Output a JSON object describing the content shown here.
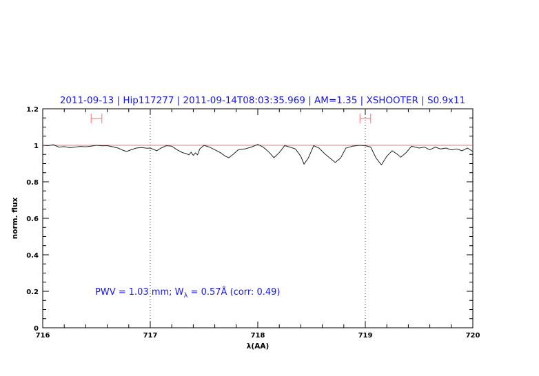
{
  "chart_data": {
    "type": "line",
    "title": "2011-09-13 | Hip117277 | 2011-09-14T08:03:35.969 | AM=1.35 | XSHOOTER | S0.9x11",
    "xlabel": "λ(AA)",
    "ylabel": "norm. flux",
    "xlim": [
      716,
      720
    ],
    "ylim": [
      0,
      1.2
    ],
    "xticks": [
      "716",
      "717",
      "718",
      "719",
      "720"
    ],
    "yticks": [
      "0",
      "0.2",
      "0.4",
      "0.6",
      "0.8",
      "1",
      "1.2"
    ],
    "grid": false,
    "reference_line": 1.0,
    "vertical_dotted_lines": [
      717,
      719
    ],
    "error_bars": [
      {
        "x": [
          716.45,
          716.55
        ],
        "y": 1.147
      },
      {
        "x": [
          718.95,
          719.05
        ],
        "y": 1.147
      }
    ],
    "annotation": {
      "prefix": "PWV  =  1.03  mm;  W",
      "sub": "λ",
      "suffix": "  =  0.57Å  (corr:  0.49)"
    },
    "series": [
      {
        "x": [
          716.0,
          716.05,
          716.1,
          716.15,
          716.2,
          716.25,
          716.3,
          716.35,
          716.4,
          716.45,
          716.5,
          716.55,
          716.6,
          716.65,
          716.7,
          716.75,
          716.78,
          716.82,
          716.87,
          716.92,
          716.97,
          717.0,
          717.06,
          717.1,
          717.15,
          717.2,
          717.25,
          717.3,
          717.33,
          717.36,
          717.38,
          717.4,
          717.42,
          717.44,
          717.46,
          717.5,
          717.55,
          717.6,
          717.65,
          717.7,
          717.73,
          717.77,
          717.82,
          717.88,
          717.94,
          718.0,
          718.05,
          718.1,
          718.15,
          718.2,
          718.25,
          718.3,
          718.35,
          718.4,
          718.43,
          718.47,
          718.52,
          718.57,
          718.62,
          718.67,
          718.72,
          718.77,
          718.82,
          718.88,
          718.95,
          719.0,
          719.05,
          719.1,
          719.15,
          719.2,
          719.25,
          719.3,
          719.33,
          719.38,
          719.43,
          719.5,
          719.55,
          719.6,
          719.65,
          719.7,
          719.75,
          719.8,
          719.85,
          719.9,
          719.95,
          720.0
        ],
        "y": [
          1.0,
          0.998,
          1.003,
          0.99,
          0.993,
          0.987,
          0.99,
          0.994,
          0.992,
          0.995,
          1.0,
          0.997,
          0.998,
          0.992,
          0.985,
          0.972,
          0.966,
          0.975,
          0.985,
          0.988,
          0.984,
          0.985,
          0.97,
          0.985,
          0.998,
          0.995,
          0.975,
          0.96,
          0.955,
          0.948,
          0.962,
          0.945,
          0.958,
          0.948,
          0.98,
          1.0,
          0.99,
          0.976,
          0.96,
          0.94,
          0.932,
          0.95,
          0.976,
          0.98,
          0.99,
          1.005,
          0.99,
          0.965,
          0.932,
          0.96,
          0.998,
          0.99,
          0.98,
          0.94,
          0.897,
          0.93,
          0.998,
          0.985,
          0.955,
          0.93,
          0.906,
          0.93,
          0.985,
          0.995,
          1.0,
          0.998,
          0.99,
          0.93,
          0.893,
          0.94,
          0.97,
          0.95,
          0.935,
          0.96,
          0.995,
          0.985,
          0.99,
          0.975,
          0.99,
          0.98,
          0.985,
          0.975,
          0.98,
          0.97,
          0.985,
          0.966
        ]
      }
    ],
    "colors": {
      "title": "#1515ff",
      "reference": "#d98080",
      "error_bars": "#ff7070",
      "line": "#222222",
      "annotation": "#1515ff"
    }
  }
}
